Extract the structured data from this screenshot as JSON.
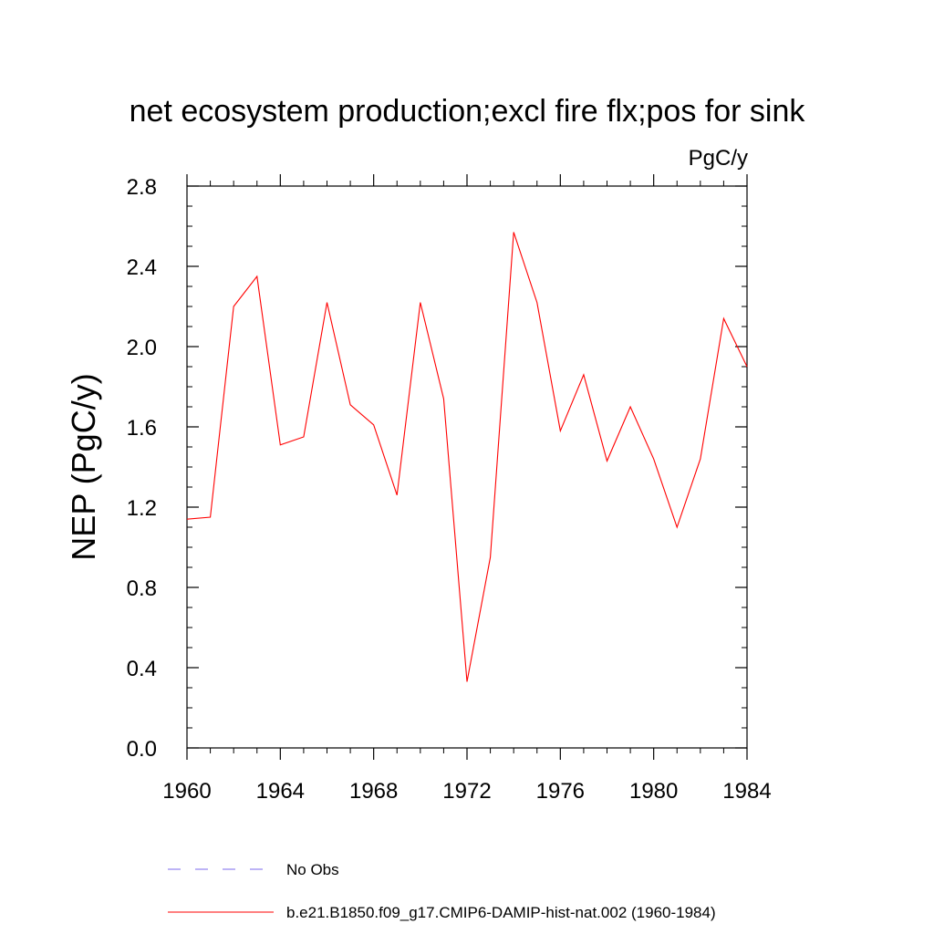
{
  "chart_data": {
    "type": "line",
    "title": "net ecosystem production;excl fire flx;pos for sink",
    "units": "PgC/y",
    "ylabel": "NEP  (PgC/y)",
    "xlabel": "",
    "xlim": [
      1960,
      1984
    ],
    "ylim": [
      0.0,
      2.8
    ],
    "x_ticks": [
      "1960",
      "1964",
      "1968",
      "1972",
      "1976",
      "1980",
      "1984"
    ],
    "y_ticks": [
      "0.0",
      "0.4",
      "0.8",
      "1.2",
      "1.6",
      "2.0",
      "2.4",
      "2.8"
    ],
    "grid": false,
    "legend_position": "bottom",
    "series": [
      {
        "name": "No Obs",
        "color": "#7b68ee",
        "style": "dashed",
        "x": [],
        "values": []
      },
      {
        "name": "b.e21.B1850.f09_g17.CMIP6-DAMIP-hist-nat.002 (1960-1984)",
        "color": "#ff0000",
        "style": "solid",
        "x": [
          1960,
          1961,
          1962,
          1963,
          1964,
          1965,
          1966,
          1967,
          1968,
          1969,
          1970,
          1971,
          1972,
          1973,
          1974,
          1975,
          1976,
          1977,
          1978,
          1979,
          1980,
          1981,
          1982,
          1983,
          1984
        ],
        "values": [
          1.14,
          1.15,
          2.2,
          2.35,
          1.51,
          1.55,
          2.22,
          1.71,
          1.61,
          1.26,
          2.22,
          1.74,
          0.33,
          0.95,
          2.57,
          2.22,
          1.58,
          1.86,
          1.43,
          1.7,
          1.44,
          1.1,
          1.44,
          2.14,
          1.9
        ]
      }
    ]
  }
}
